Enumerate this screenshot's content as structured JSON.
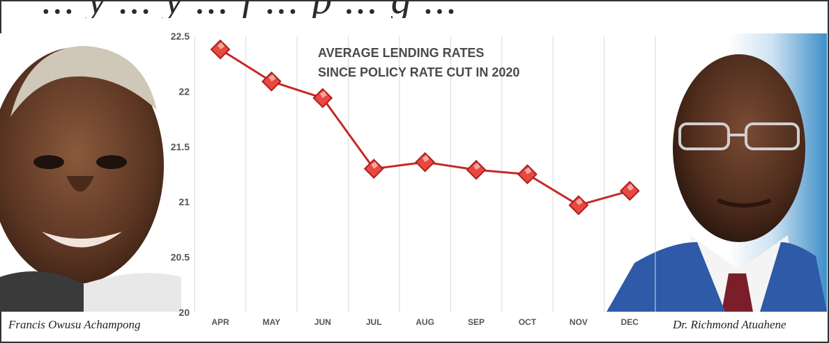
{
  "headline_fragment": "... y ... y ... f ... p ... g ...",
  "people": {
    "left": {
      "caption": "Francis Owusu Achampong"
    },
    "right": {
      "caption": "Dr. Richmond Atuahene"
    }
  },
  "chart_data": {
    "type": "line",
    "title_lines": [
      "AVERAGE LENDING RATES",
      "SINCE POLICY RATE CUT IN 2020"
    ],
    "categories": [
      "APR",
      "MAY",
      "JUN",
      "JUL",
      "AUG",
      "SEP",
      "OCT",
      "NOV",
      "DEC"
    ],
    "series": [
      {
        "values": [
          22.38,
          22.09,
          21.94,
          21.3,
          21.36,
          21.29,
          21.25,
          20.97,
          21.1
        ],
        "color": "#c62828"
      }
    ],
    "y_ticks": [
      "22.5",
      "22",
      "21.5",
      "21",
      "20.5",
      "20"
    ],
    "ylim": [
      20,
      22.5
    ],
    "grid": {
      "vertical": true,
      "horizontal": false
    },
    "marker": "diamond",
    "legend": "none"
  }
}
